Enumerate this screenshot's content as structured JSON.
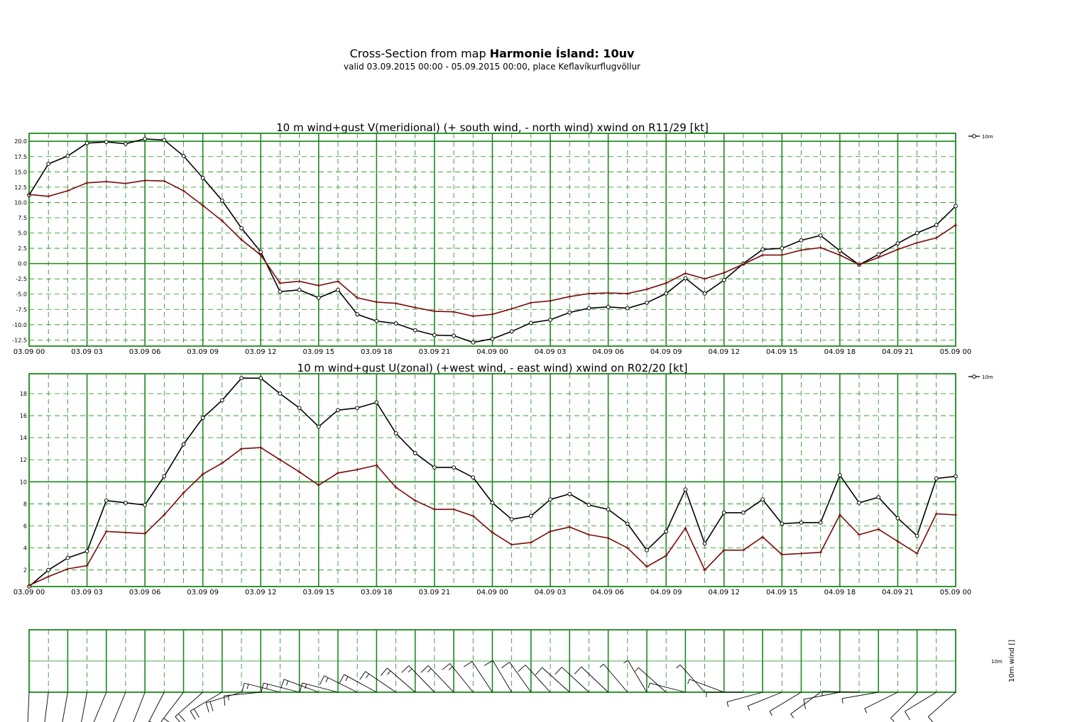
{
  "header": {
    "title_prefix": "Cross-Section from map",
    "title_bold": "Harmonie Ísland: 10uv",
    "subtitle": "valid 03.09.2015 00:00 - 05.09.2015 00:00, place Keflavíkurflugvöllur"
  },
  "colors": {
    "grid": "#1a8a1a",
    "wind": "#000000",
    "gust": "#7a0a0a"
  },
  "chart_data": [
    {
      "type": "line",
      "title": "10 m wind+gust V(meridional) (+ south wind, - north wind) xwind on R11/29 [kt]",
      "x_tick_labels": [
        "03.09 00",
        "03.09 03",
        "03.09 06",
        "03.09 09",
        "03.09 12",
        "03.09 15",
        "03.09 18",
        "03.09 21",
        "04.09 00",
        "04.09 03",
        "04.09 06",
        "04.09 09",
        "04.09 12",
        "04.09 15",
        "04.09 18",
        "04.09 21",
        "05.09 00"
      ],
      "x_hours": [
        0,
        1,
        2,
        3,
        4,
        5,
        6,
        7,
        8,
        9,
        10,
        11,
        12,
        13,
        14,
        15,
        16,
        17,
        18,
        19,
        20,
        21,
        22,
        23,
        24,
        25,
        26,
        27,
        28,
        29,
        30,
        31,
        32,
        33,
        34,
        35,
        36,
        37,
        38,
        39,
        40,
        41,
        42,
        43,
        44,
        45,
        46,
        47,
        48
      ],
      "y_ticks": [
        20.0,
        17.5,
        15.0,
        12.5,
        10.0,
        7.5,
        5.0,
        2.5,
        0.0,
        -2.5,
        -5.0,
        -7.5,
        -10.0,
        -12.5
      ],
      "y_tick_labels": [
        "20.0",
        "17.5",
        "15.0",
        "12.5",
        "10.0",
        "7.5",
        "5.0",
        "2.5",
        "0.0",
        "-2.5",
        "-5.0",
        "-7.5",
        "-10.0",
        "-12.5"
      ],
      "ylim": [
        -13.5,
        21.3
      ],
      "legend": "10m",
      "legend_position": "top-right",
      "grid": true,
      "series": [
        {
          "values": [
            11.2,
            16.3,
            17.6,
            19.7,
            19.9,
            19.6,
            20.4,
            20.2,
            17.6,
            14.0,
            10.3,
            5.8,
            1.9,
            -4.6,
            -4.3,
            -5.6,
            -4.3,
            -8.3,
            -9.4,
            -9.8,
            -10.9,
            -11.7,
            -11.8,
            -12.9,
            -12.3,
            -11.1,
            -9.7,
            -9.2,
            -8.0,
            -7.3,
            -7.1,
            -7.3,
            -6.4,
            -4.9,
            -2.4,
            -4.9,
            -2.7,
            0.0,
            2.3,
            2.5,
            3.8,
            4.6,
            2.1,
            -0.2,
            1.5,
            3.3,
            5.0,
            6.3,
            9.4
          ]
        },
        {
          "values": [
            11.3,
            11.0,
            11.9,
            13.2,
            13.4,
            13.1,
            13.6,
            13.5,
            11.9,
            9.5,
            7.0,
            3.9,
            1.4,
            -3.2,
            -2.9,
            -3.6,
            -2.9,
            -5.6,
            -6.3,
            -6.5,
            -7.2,
            -7.8,
            -7.9,
            -8.6,
            -8.3,
            -7.4,
            -6.4,
            -6.1,
            -5.4,
            -4.9,
            -4.8,
            -4.9,
            -4.2,
            -3.2,
            -1.6,
            -2.5,
            -1.5,
            -0.1,
            1.4,
            1.4,
            2.2,
            2.6,
            1.4,
            -0.2,
            1.0,
            2.3,
            3.4,
            4.2,
            6.3
          ]
        }
      ]
    },
    {
      "type": "line",
      "title": "10 m wind+gust U(zonal) (+west wind, - east wind) xwind on R02/20 [kt]",
      "x_tick_labels": [
        "03.09 00",
        "03.09 03",
        "03.09 06",
        "03.09 09",
        "03.09 12",
        "03.09 15",
        "03.09 18",
        "03.09 21",
        "04.09 00",
        "04.09 03",
        "04.09 06",
        "04.09 09",
        "04.09 12",
        "04.09 15",
        "04.09 18",
        "04.09 21",
        "05.09 00"
      ],
      "x_hours": [
        0,
        1,
        2,
        3,
        4,
        5,
        6,
        7,
        8,
        9,
        10,
        11,
        12,
        13,
        14,
        15,
        16,
        17,
        18,
        19,
        20,
        21,
        22,
        23,
        24,
        25,
        26,
        27,
        28,
        29,
        30,
        31,
        32,
        33,
        34,
        35,
        36,
        37,
        38,
        39,
        40,
        41,
        42,
        43,
        44,
        45,
        46,
        47,
        48
      ],
      "y_ticks": [
        2,
        4,
        6,
        8,
        10,
        12,
        14,
        16,
        18
      ],
      "y_tick_labels": [
        "2",
        "4",
        "6",
        "8",
        "10",
        "12",
        "14",
        "16",
        "18"
      ],
      "ylim": [
        0.5,
        19.8
      ],
      "legend": "10m",
      "legend_position": "top-right",
      "grid": true,
      "series": [
        {
          "values": [
            0.5,
            2.0,
            3.1,
            3.7,
            8.3,
            8.1,
            7.9,
            10.5,
            13.4,
            15.8,
            17.4,
            19.4,
            19.4,
            18.0,
            16.7,
            15.0,
            16.5,
            16.7,
            17.2,
            14.4,
            12.6,
            11.3,
            11.3,
            10.4,
            8.1,
            6.6,
            6.9,
            8.4,
            8.9,
            7.9,
            7.5,
            6.2,
            3.8,
            5.5,
            9.3,
            4.4,
            7.2,
            7.2,
            8.4,
            6.2,
            6.3,
            6.3,
            10.6,
            8.1,
            8.6,
            6.7,
            5.1,
            10.3,
            10.5
          ]
        },
        {
          "values": [
            0.6,
            1.4,
            2.1,
            2.4,
            5.5,
            5.4,
            5.3,
            7.0,
            9.0,
            10.7,
            11.7,
            13.0,
            13.1,
            12.0,
            10.9,
            9.7,
            10.8,
            11.1,
            11.5,
            9.5,
            8.3,
            7.5,
            7.5,
            6.9,
            5.4,
            4.3,
            4.5,
            5.5,
            5.9,
            5.2,
            4.9,
            4.0,
            2.3,
            3.3,
            5.8,
            2.0,
            3.8,
            3.8,
            5.0,
            3.4,
            3.5,
            3.6,
            7.0,
            5.2,
            5.7,
            4.6,
            3.5,
            7.1,
            7.0
          ]
        }
      ]
    }
  ],
  "barbs": {
    "ylabel": "10m wind []",
    "level_label": "10m"
  }
}
